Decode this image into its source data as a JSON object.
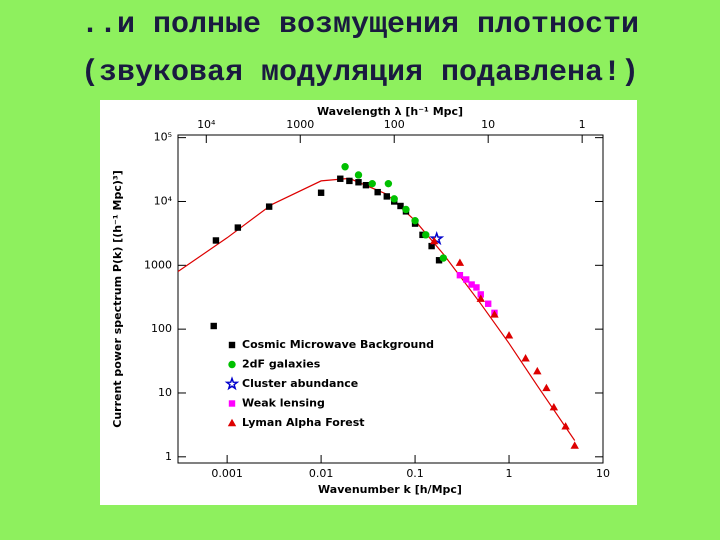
{
  "slide": {
    "title_lines": [
      "..и полные возмущения плотности",
      "(звуковая модуляция подавлена!)"
    ]
  },
  "chart_data": {
    "type": "scatter",
    "x_label": "Wavenumber k [h/Mpc]",
    "x2_label": "Wavelength λ [h⁻¹ Mpc]",
    "y_label": "Current power spectrum P(k) [(h⁻¹ Mpc)³]",
    "xscale": "log",
    "yscale": "log",
    "xlim": [
      0.0003,
      10
    ],
    "xticks": [
      0.001,
      0.01,
      0.1,
      1,
      10
    ],
    "x2lim": [
      20000,
      0.6
    ],
    "x2ticks": [
      {
        "value": 10000,
        "label": "10⁴"
      },
      1000,
      100,
      10,
      1
    ],
    "ylim": [
      0.8,
      110000
    ],
    "yticks": [
      {
        "value": 100000,
        "label": "10⁵"
      },
      {
        "value": 10000,
        "label": "10⁴"
      },
      1000,
      100,
      10,
      1
    ],
    "legend_position": "lower left",
    "curve": {
      "color": "#dd0000",
      "x": [
        0.0003,
        0.001,
        0.003,
        0.01,
        0.02,
        0.05,
        0.1,
        0.2,
        0.5,
        1,
        2,
        5
      ],
      "values": [
        800,
        2700,
        9000,
        21000,
        23000,
        13000,
        5000,
        1500,
        250,
        60,
        13,
        1.8
      ]
    },
    "series": [
      {
        "name": "Cosmic Microwave Background",
        "color": "#000000",
        "marker": "square",
        "x": [
          0.00072,
          0.00076,
          0.0013,
          0.0028,
          0.01,
          0.016,
          0.02,
          0.025,
          0.03,
          0.04,
          0.05,
          0.06,
          0.07,
          0.08,
          0.1,
          0.12,
          0.15,
          0.18
        ],
        "values": [
          112,
          2450,
          3900,
          8300,
          13700,
          22700,
          21000,
          20000,
          18000,
          14000,
          12000,
          10000,
          8500,
          7000,
          4500,
          3000,
          2000,
          1200
        ]
      },
      {
        "name": "2dF galaxies",
        "color": "#00c000",
        "marker": "circle",
        "x": [
          0.018,
          0.025,
          0.035,
          0.052,
          0.06,
          0.08,
          0.1,
          0.13,
          0.2
        ],
        "values": [
          35000,
          26000,
          19000,
          19000,
          11000,
          7500,
          5000,
          3000,
          1300
        ]
      },
      {
        "name": "Cluster abundance",
        "color": "#0000cc",
        "marker": "star",
        "x": [
          0.17
        ],
        "values": [
          2600
        ]
      },
      {
        "name": "Weak lensing",
        "color": "#ff00ff",
        "marker": "square",
        "x": [
          0.3,
          0.35,
          0.4,
          0.45,
          0.5,
          0.6,
          0.7
        ],
        "values": [
          700,
          600,
          500,
          450,
          350,
          250,
          180
        ]
      },
      {
        "name": "Lyman Alpha Forest",
        "color": "#dd0000",
        "marker": "triangle",
        "x": [
          0.16,
          0.3,
          0.5,
          0.7,
          1,
          1.5,
          2,
          2.5,
          3,
          4,
          5
        ],
        "values": [
          2400,
          1100,
          300,
          170,
          80,
          35,
          22,
          12,
          6,
          3,
          1.5
        ]
      }
    ]
  }
}
